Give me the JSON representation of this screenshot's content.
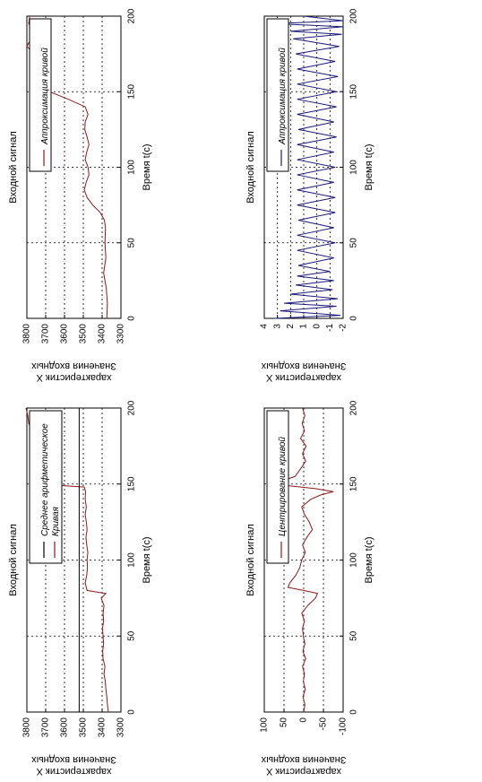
{
  "colors": {
    "background": "#ffffff",
    "axis": "#000000",
    "grid": "#000000",
    "curve_red": "#8b1a1a",
    "curve_blue": "#1a1a7a",
    "mean_line": "#000000"
  },
  "chart_data": [
    {
      "id": "top-left",
      "type": "line",
      "title": "Входной сигнал",
      "xlabel": "Время t(c)",
      "ylabel": [
        "Значения входных",
        "характеристик Х"
      ],
      "xlim": [
        0,
        200
      ],
      "ylim": [
        3300,
        3800
      ],
      "xticks": [
        "0",
        "50",
        "100",
        "150",
        "200"
      ],
      "yticks": [
        "3300",
        "3400",
        "3500",
        "3600",
        "3700",
        "3800"
      ],
      "grid": true,
      "legend_position": "upper-right",
      "legend_entries": [
        "Кривая",
        "Среднее арифметическое"
      ],
      "series": [
        {
          "name": "Кривая",
          "color": "#8b1a1a",
          "x": [
            0,
            5,
            10,
            15,
            20,
            25,
            30,
            35,
            40,
            45,
            50,
            55,
            60,
            65,
            70,
            75,
            78,
            80,
            85,
            90,
            95,
            100,
            105,
            110,
            115,
            120,
            125,
            130,
            135,
            140,
            145,
            148,
            150,
            152,
            155,
            160,
            165,
            170,
            175,
            180,
            185,
            190,
            195,
            200
          ],
          "y": [
            3367,
            3372,
            3375,
            3380,
            3383,
            3390,
            3385,
            3395,
            3397,
            3392,
            3395,
            3398,
            3392,
            3395,
            3390,
            3405,
            3380,
            3480,
            3490,
            3482,
            3478,
            3480,
            3476,
            3482,
            3486,
            3480,
            3484,
            3490,
            3484,
            3490,
            3488,
            3495,
            3740,
            3755,
            3760,
            3768,
            3760,
            3770,
            3780,
            3785,
            3775,
            3790,
            3795,
            3805
          ]
        },
        {
          "name": "Среднее арифметическое",
          "color": "#000000",
          "x": [
            0,
            200
          ],
          "y": [
            3522,
            3522
          ]
        }
      ]
    },
    {
      "id": "top-right",
      "type": "line",
      "title": "Входной сигнал",
      "xlabel": "Время t(c)",
      "ylabel": [
        "Значения входных",
        "характеристик Х"
      ],
      "xlim": [
        0,
        200
      ],
      "ylim": [
        3300,
        3800
      ],
      "xticks": [
        "0",
        "50",
        "100",
        "150",
        "200"
      ],
      "yticks": [
        "3300",
        "3400",
        "3500",
        "3600",
        "3700",
        "3800"
      ],
      "grid": true,
      "legend_position": "upper-right",
      "legend_entries": [
        "Аппроксимация кривой"
      ],
      "series": [
        {
          "name": "Аппроксимация кривой",
          "color": "#8b1a1a",
          "x": [
            0,
            10,
            20,
            30,
            40,
            50,
            60,
            65,
            70,
            75,
            80,
            85,
            90,
            95,
            100,
            105,
            110,
            115,
            120,
            125,
            130,
            135,
            140,
            145,
            150,
            155,
            160,
            165,
            170,
            175,
            180,
            185,
            190,
            195,
            200
          ],
          "y": [
            3375,
            3372,
            3378,
            3392,
            3380,
            3385,
            3382,
            3388,
            3410,
            3450,
            3480,
            3495,
            3485,
            3470,
            3475,
            3490,
            3482,
            3470,
            3480,
            3492,
            3490,
            3475,
            3490,
            3580,
            3680,
            3730,
            3762,
            3772,
            3745,
            3760,
            3800,
            3778,
            3768,
            3790,
            3785
          ]
        }
      ]
    },
    {
      "id": "bottom-left",
      "type": "line",
      "title": "Входной сигнал",
      "xlabel": "Время t(c)",
      "ylabel": [
        "Значения входных",
        "характеристик Х"
      ],
      "xlim": [
        0,
        200
      ],
      "ylim": [
        -100,
        100
      ],
      "xticks": [
        "0",
        "50",
        "100",
        "150",
        "200"
      ],
      "yticks": [
        "-100",
        "-50",
        "0",
        "50",
        "100"
      ],
      "grid": true,
      "legend_position": "upper-right",
      "legend_entries": [
        "Центрирование кривой"
      ],
      "series": [
        {
          "name": "Центрирование кривой",
          "color": "#8b1a1a",
          "x": [
            0,
            5,
            10,
            15,
            20,
            25,
            30,
            35,
            40,
            45,
            50,
            55,
            60,
            65,
            70,
            75,
            78,
            80,
            82,
            85,
            90,
            95,
            100,
            105,
            110,
            115,
            120,
            125,
            130,
            135,
            140,
            143,
            145,
            147,
            150,
            152,
            155,
            160,
            165,
            170,
            175,
            180,
            185,
            190,
            195,
            200
          ],
          "y": [
            0,
            -3,
            2,
            -4,
            1,
            -2,
            3,
            -5,
            2,
            -3,
            1,
            3,
            -2,
            5,
            -10,
            -30,
            -35,
            0,
            40,
            35,
            20,
            10,
            5,
            -4,
            3,
            -8,
            -22,
            -14,
            -2,
            5,
            -18,
            -45,
            -75,
            -30,
            78,
            55,
            22,
            8,
            -5,
            3,
            -6,
            8,
            -2,
            4,
            -3,
            3
          ]
        }
      ]
    },
    {
      "id": "bottom-right",
      "type": "line",
      "title": "Входной сигнал",
      "xlabel": "Время t(c)",
      "ylabel": [
        "Значения входных",
        "характеристик Х"
      ],
      "xlim": [
        0,
        200
      ],
      "ylim": [
        -2,
        4
      ],
      "xticks": [
        "0",
        "50",
        "100",
        "150",
        "200"
      ],
      "yticks": [
        "-2",
        "-1",
        "0",
        "1",
        "2",
        "3",
        "4"
      ],
      "grid": true,
      "legend_position": "upper-right",
      "legend_entries": [
        "Аппроксимация кривой"
      ],
      "series": [
        {
          "name": "Аппроксимация кривой",
          "color": "#1a1a7a",
          "x": [
            0,
            2,
            5,
            8,
            10,
            13,
            16,
            19,
            22,
            25,
            28,
            31,
            35,
            40,
            45,
            50,
            55,
            60,
            65,
            70,
            75,
            80,
            85,
            90,
            95,
            100,
            105,
            110,
            115,
            120,
            125,
            130,
            135,
            140,
            145,
            150,
            155,
            160,
            165,
            170,
            175,
            180,
            185,
            188,
            190,
            193,
            195,
            197,
            200
          ],
          "y": [
            3.2,
            -1.8,
            2.8,
            -1.5,
            2.5,
            -1.6,
            2.0,
            -1.2,
            1.6,
            -1.3,
            1.5,
            -1.0,
            1.4,
            -1.3,
            1.5,
            -1.4,
            1.5,
            -1.3,
            1.4,
            -1.4,
            1.5,
            -1.4,
            1.5,
            -1.3,
            1.5,
            -1.4,
            1.5,
            -1.3,
            1.5,
            -1.5,
            1.4,
            -1.3,
            1.5,
            -1.5,
            1.5,
            -1.5,
            1.5,
            -1.6,
            1.5,
            -1.4,
            1.6,
            -1.7,
            1.8,
            -1.9,
            2.0,
            -2.0,
            3.2,
            -2.0,
            1.0
          ]
        }
      ]
    }
  ]
}
